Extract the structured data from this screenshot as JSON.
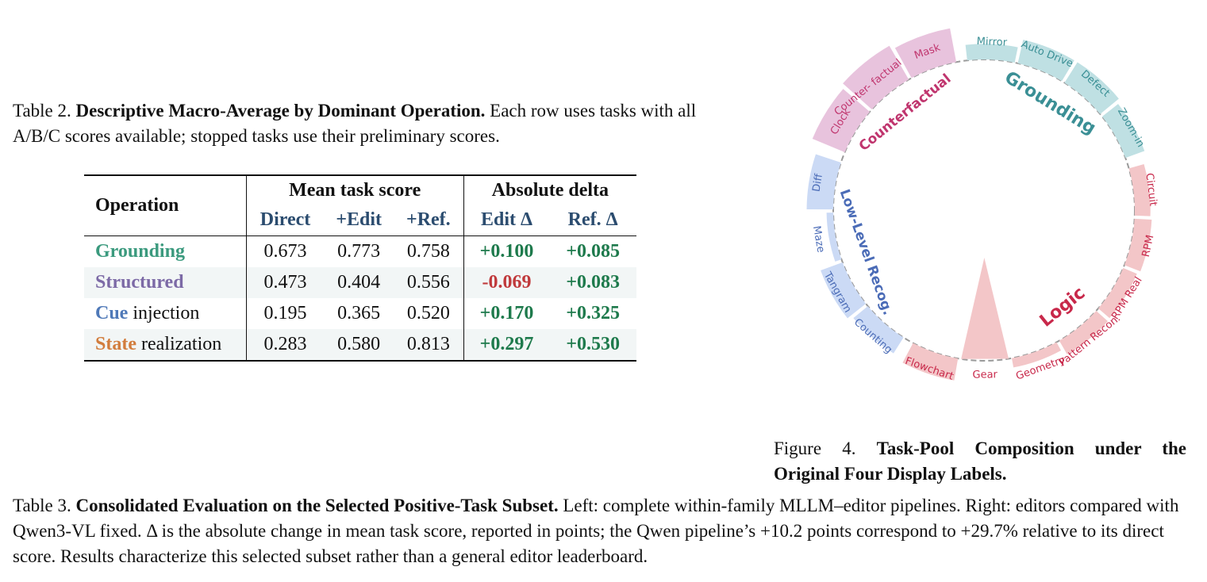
{
  "table2": {
    "caption_label": "Table 2.",
    "caption_title": "Descriptive Macro-Average by Dominant Operation.",
    "caption_text": "Each row uses tasks with all A/B/C scores available; stopped tasks use their preliminary scores.",
    "header": {
      "operation": "Operation",
      "group_mean": "Mean task score",
      "group_delta": "Absolute delta",
      "cols": [
        "Direct",
        "+Edit",
        "+Ref.",
        "Edit Δ",
        "Ref. Δ"
      ]
    },
    "rows": [
      {
        "op": "Grounding",
        "suffix": "",
        "direct": "0.673",
        "edit": "0.773",
        "ref": "0.758",
        "edit_delta": "+0.100",
        "ref_delta": "+0.085"
      },
      {
        "op": "Structured",
        "suffix": "",
        "direct": "0.473",
        "edit": "0.404",
        "ref": "0.556",
        "edit_delta": "-0.069",
        "ref_delta": "+0.083"
      },
      {
        "op": "Cue",
        "suffix": " injection",
        "direct": "0.195",
        "edit": "0.365",
        "ref": "0.520",
        "edit_delta": "+0.170",
        "ref_delta": "+0.325"
      },
      {
        "op": "State",
        "suffix": " realization",
        "direct": "0.283",
        "edit": "0.580",
        "ref": "0.813",
        "edit_delta": "+0.297",
        "ref_delta": "+0.530"
      }
    ],
    "colors": {
      "grounding": "#3b9a7e",
      "structured": "#7c6aa6",
      "cue": "#4f79b8",
      "state": "#d27d3d",
      "positive": "#1e7a4c",
      "negative": "#c0393b"
    }
  },
  "figure4": {
    "caption_label": "Figure 4.",
    "caption_title_line1": "Task-Pool Composition under the",
    "caption_title_line2": "Original Four Display Labels.",
    "groups": [
      {
        "name": "Counterfactual",
        "color": "#c0356e",
        "fill": "#e8c3dd",
        "tasks": [
          {
            "name": "Clock",
            "value": 0.78
          },
          {
            "name": "Counter- factual VQA",
            "value": 0.88
          },
          {
            "name": "Mask",
            "value": 0.76
          }
        ]
      },
      {
        "name": "Grounding",
        "color": "#3a8f95",
        "fill": "#bfe0e3",
        "tasks": [
          {
            "name": "Mirror",
            "value": 0.28
          },
          {
            "name": "Auto Drive",
            "value": 0.5
          },
          {
            "name": "Defect",
            "value": 0.5
          },
          {
            "name": "Zoom-in",
            "value": 0.4
          }
        ]
      },
      {
        "name": "Logic",
        "color": "#c8284a",
        "fill": "#f3c6c8",
        "tasks": [
          {
            "name": "Circuit",
            "value": 0.28
          },
          {
            "name": "RPM",
            "value": 0.32
          },
          {
            "name": "RPM Real",
            "value": 0.26
          },
          {
            "name": "Pattern Recon.",
            "value": 0.28
          },
          {
            "name": "Geometry",
            "value": 0.12
          },
          {
            "name": "Gear",
            "value": 1.0
          },
          {
            "name": "Flowchart",
            "value": 0.45
          }
        ]
      },
      {
        "name": "Low-Level Recog.",
        "color": "#4b6cb7",
        "fill": "#cbdaf5",
        "tasks": [
          {
            "name": "Counting",
            "value": 0.36
          },
          {
            "name": "Tangram",
            "value": 0.48
          },
          {
            "name": "Maze",
            "value": 0.05
          },
          {
            "name": "Diff",
            "value": 0.56
          }
        ]
      }
    ]
  },
  "table3": {
    "caption_label": "Table 3.",
    "caption_title": "Consolidated Evaluation on the Selected Positive-Task Subset.",
    "caption_text": "Left: complete within-family MLLM–editor pipelines. Right: editors compared with Qwen3-VL fixed. Δ is the absolute change in mean task score, reported in points; the Qwen pipeline’s +10.2 points correspond to +29.7% relative to its direct score. Results characterize this selected subset rather than a general editor leaderboard."
  }
}
